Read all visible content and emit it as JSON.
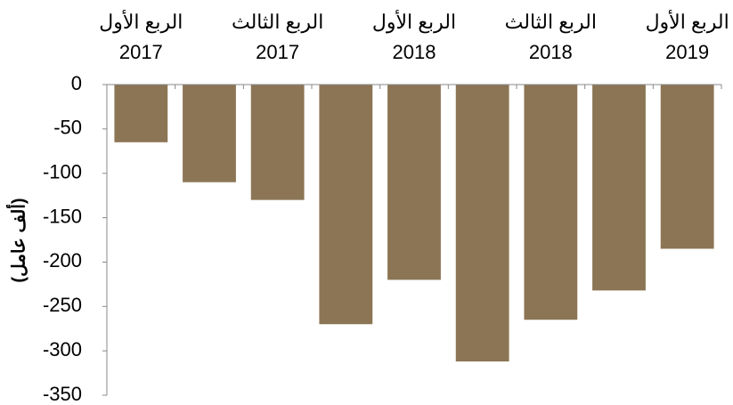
{
  "chart_data": {
    "type": "bar",
    "y_label": "(ألف عامل)",
    "categories": [
      "الربع الأول\n2017",
      null,
      "الربع الثالث\n2017",
      null,
      "الربع الأول\n2018",
      null,
      "الربع الثالث\n2018",
      null,
      "الربع الأول\n2019"
    ],
    "values": [
      -65,
      -110,
      -130,
      -270,
      -220,
      -312,
      -265,
      -232,
      -185
    ],
    "color": "#8b7554",
    "ylim": [
      -350,
      0
    ],
    "yticks": [
      0,
      -50,
      -100,
      -150,
      -200,
      -250,
      -300,
      -350
    ],
    "grid": false
  }
}
